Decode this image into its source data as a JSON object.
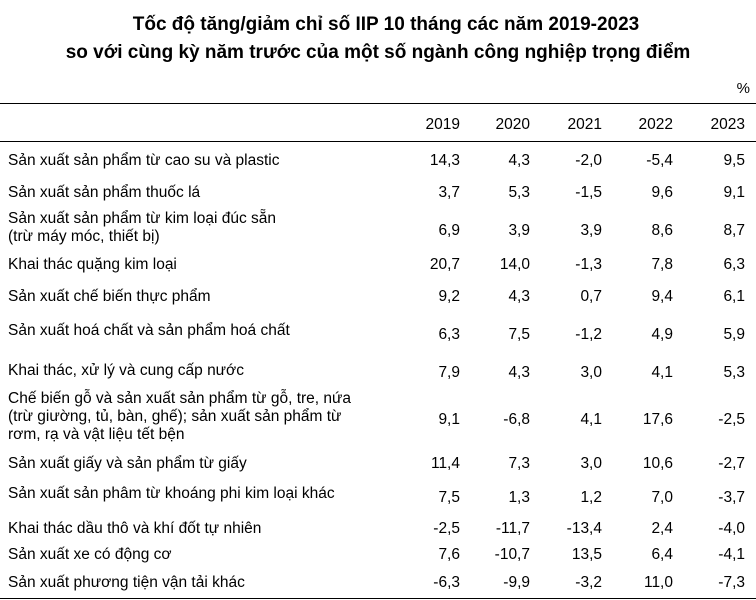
{
  "title": {
    "line1": "Tốc độ tăng/giảm chỉ số IIP 10 tháng các năm 2019-2023",
    "line2": "so với cùng kỳ năm trước của một số ngành công nghiệp trọng điểm"
  },
  "unit": "%",
  "columns": [
    "2019",
    "2020",
    "2021",
    "2022",
    "2023"
  ],
  "rows": [
    {
      "label": "Sản xuất sản phẩm từ cao su và plastic",
      "values": [
        "14,3",
        "4,3",
        "-2,0",
        "-5,4",
        "9,5"
      ]
    },
    {
      "label": "Sản xuất sản phẩm thuốc lá",
      "values": [
        "3,7",
        "5,3",
        "-1,5",
        "9,6",
        "9,1"
      ]
    },
    {
      "label": "Sản xuất sản phẩm từ kim loại đúc sẵn\n(trừ máy móc, thiết bị)",
      "values": [
        "6,9",
        "3,9",
        "3,9",
        "8,6",
        "8,7"
      ]
    },
    {
      "label": "Khai thác quặng kim loại",
      "values": [
        "20,7",
        "14,0",
        "-1,3",
        "7,8",
        "6,3"
      ]
    },
    {
      "label": "Sản xuất chế biến thực phẩm",
      "values": [
        "9,2",
        "4,3",
        "0,7",
        "9,4",
        "6,1"
      ]
    },
    {
      "label": "Sản xuất hoá chất và sản phẩm hoá chất",
      "values": [
        "6,3",
        "7,5",
        "-1,2",
        "4,9",
        "5,9"
      ]
    },
    {
      "label": "Khai thác, xử lý và cung cấp nước",
      "values": [
        "7,9",
        "4,3",
        "3,0",
        "4,1",
        "5,3"
      ]
    },
    {
      "label": "Chế biến gỗ và sản xuất sản phẩm từ gỗ, tre, nứa\n(trừ giường, tủ, bàn, ghế); sản xuất sản phẩm từ\nrơm, rạ và vật liệu tết bện",
      "values": [
        "9,1",
        "-6,8",
        "4,1",
        "17,6",
        "-2,5"
      ]
    },
    {
      "label": "Sản xuất giấy và sản phẩm từ giấy",
      "values": [
        "11,4",
        "7,3",
        "3,0",
        "10,6",
        "-2,7"
      ]
    },
    {
      "label": "Sản xuất sản phâm từ khoáng phi kim loại khác",
      "values": [
        "7,5",
        "1,3",
        "1,2",
        "7,0",
        "-3,7"
      ]
    },
    {
      "label": "Khai thác dầu thô và khí đốt tự nhiên",
      "values": [
        "-2,5",
        "-11,7",
        "-13,4",
        "2,4",
        "-4,0"
      ]
    },
    {
      "label": "Sản xuất xe có động cơ",
      "values": [
        "7,6",
        "-10,7",
        "13,5",
        "6,4",
        "-4,1"
      ]
    },
    {
      "label": "Sản xuất phương tiện vận tải khác",
      "values": [
        "-6,3",
        "-9,9",
        "-3,2",
        "11,0",
        "-7,3"
      ]
    }
  ]
}
